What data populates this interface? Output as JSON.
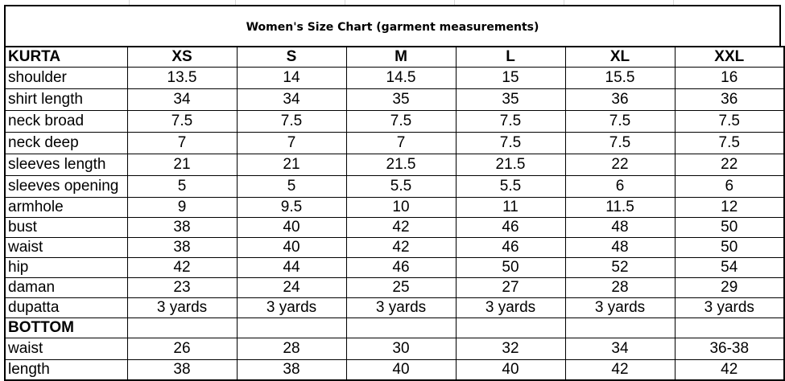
{
  "title": "Women's Size Chart (garment measurements)",
  "kurta": {
    "section_label": "KURTA",
    "sizes": [
      "XS",
      "S",
      "M",
      "L",
      "XL",
      "XXL"
    ],
    "rows": [
      {
        "label": "shoulder",
        "values": [
          "13.5",
          "14",
          "14.5",
          "15",
          "15.5",
          "16"
        ]
      },
      {
        "label": "shirt length",
        "values": [
          "34",
          "34",
          "35",
          "35",
          "36",
          "36"
        ]
      },
      {
        "label": "neck broad",
        "values": [
          "7.5",
          "7.5",
          "7.5",
          "7.5",
          "7.5",
          "7.5"
        ]
      },
      {
        "label": "neck deep",
        "values": [
          "7",
          "7",
          "7",
          "7.5",
          "7.5",
          "7.5"
        ]
      },
      {
        "label": "sleeves length",
        "values": [
          "21",
          "21",
          "21.5",
          "21.5",
          "22",
          "22"
        ]
      },
      {
        "label": "sleeves opening",
        "values": [
          "5",
          "5",
          "5.5",
          "5.5",
          "6",
          "6"
        ]
      },
      {
        "label": "armhole",
        "values": [
          "9",
          "9.5",
          "10",
          "11",
          "11.5",
          "12"
        ]
      },
      {
        "label": "bust",
        "values": [
          "38",
          "40",
          "42",
          "46",
          "48",
          "50"
        ]
      },
      {
        "label": "waist",
        "values": [
          "38",
          "40",
          "42",
          "46",
          "48",
          "50"
        ]
      },
      {
        "label": "hip",
        "values": [
          "42",
          "44",
          "46",
          "50",
          "52",
          "54"
        ]
      },
      {
        "label": "daman",
        "values": [
          "23",
          "24",
          "25",
          "27",
          "28",
          "29"
        ]
      },
      {
        "label": "dupatta",
        "values": [
          "3 yards",
          "3 yards",
          "3 yards",
          "3 yards",
          "3 yards",
          "3 yards"
        ]
      }
    ]
  },
  "bottom": {
    "section_label": "BOTTOM",
    "rows": [
      {
        "label": "waist",
        "values": [
          "26",
          "28",
          "30",
          "32",
          "34",
          "36-38"
        ]
      },
      {
        "label": "length",
        "values": [
          "38",
          "38",
          "40",
          "40",
          "42",
          "42"
        ]
      }
    ]
  }
}
